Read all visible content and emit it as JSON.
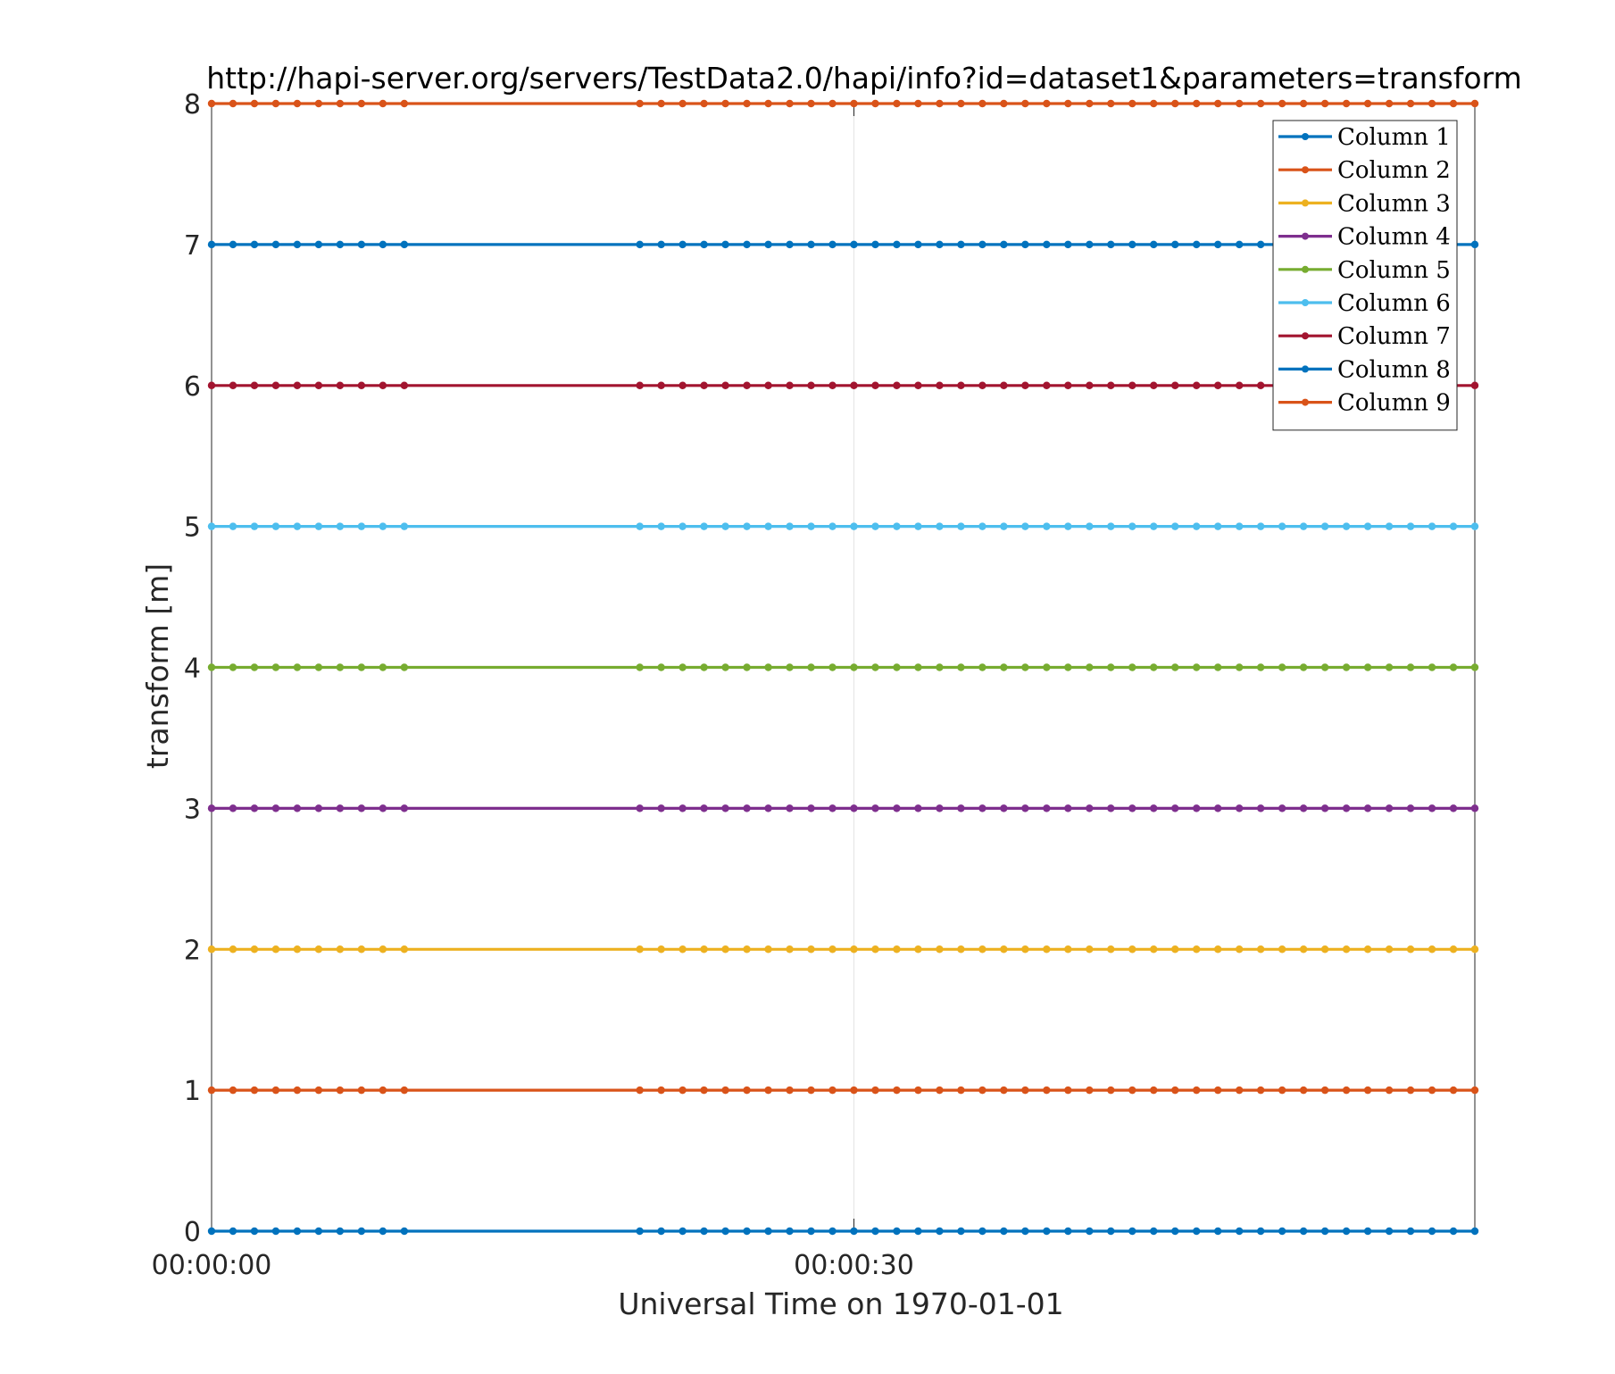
{
  "chart_data": {
    "type": "line",
    "title": "http://hapi-server.org/servers/TestData2.0/hapi/info?id=dataset1&parameters=transform",
    "xlabel": "Universal Time on 1970-01-01",
    "ylabel": "transform [m]",
    "xlim": [
      "00:00:00",
      "00:00:59"
    ],
    "ylim": [
      0,
      8
    ],
    "x_ticks": [
      "00:00:00",
      "00:00:30"
    ],
    "y_ticks": [
      "0",
      "1",
      "2",
      "3",
      "4",
      "5",
      "6",
      "7",
      "8"
    ],
    "grid": true,
    "legend_position": "top-right",
    "x_seconds": [
      0,
      1,
      2,
      3,
      4,
      5,
      6,
      7,
      8,
      9,
      20,
      21,
      22,
      23,
      24,
      25,
      26,
      27,
      28,
      29,
      30,
      31,
      32,
      33,
      34,
      35,
      36,
      37,
      38,
      39,
      40,
      41,
      42,
      43,
      44,
      45,
      46,
      47,
      48,
      49,
      50,
      51,
      52,
      53,
      54,
      55,
      56,
      57,
      58,
      59
    ],
    "series": [
      {
        "name": "Column 1",
        "value": 0,
        "color": "#0072BD"
      },
      {
        "name": "Column 2",
        "value": 1,
        "color": "#D95319"
      },
      {
        "name": "Column 3",
        "value": 2,
        "color": "#EDB120"
      },
      {
        "name": "Column 4",
        "value": 3,
        "color": "#7E2F8E"
      },
      {
        "name": "Column 5",
        "value": 4,
        "color": "#77AC30"
      },
      {
        "name": "Column 6",
        "value": 5,
        "color": "#4DBEEE"
      },
      {
        "name": "Column 7",
        "value": 6,
        "color": "#A2142F"
      },
      {
        "name": "Column 8",
        "value": 7,
        "color": "#0072BD"
      },
      {
        "name": "Column 9",
        "value": 8,
        "color": "#D95319"
      }
    ]
  }
}
